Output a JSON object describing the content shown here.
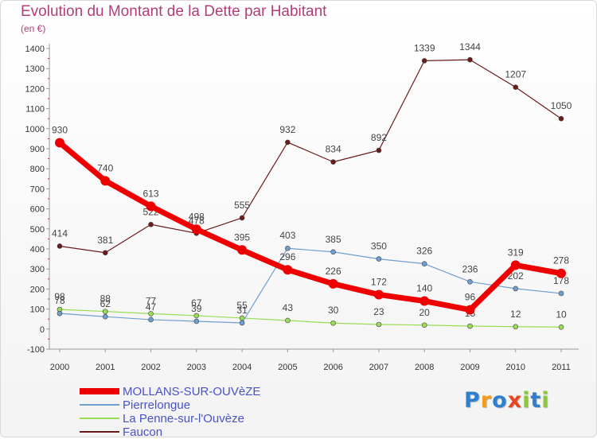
{
  "title": "Evolution du Montant de la Dette par Habitant",
  "subtitle": "(en €)",
  "logo": "Proxiti",
  "chart_data": {
    "type": "line",
    "x": [
      "2000",
      "2001",
      "2002",
      "2003",
      "2004",
      "2005",
      "2006",
      "2007",
      "2008",
      "2009",
      "2010",
      "2011"
    ],
    "ylim": [
      -100,
      1400
    ],
    "yticks": [
      -100,
      0,
      100,
      200,
      300,
      400,
      500,
      600,
      700,
      800,
      900,
      1000,
      1100,
      1200,
      1300,
      1400
    ],
    "grid": false,
    "legend_position": "bottom-left",
    "series": [
      {
        "name": "Faucon",
        "color": "#6b1a1a",
        "width": 1.2,
        "marker": 3,
        "values": [
          414,
          381,
          522,
          478,
          555,
          932,
          834,
          892,
          1339,
          1344,
          1207,
          1050
        ]
      },
      {
        "name": "La Penne-sur-l'Ouvèze",
        "color": "#99dd55",
        "width": 1.2,
        "marker": 3,
        "values": [
          98,
          88,
          77,
          67,
          55,
          43,
          30,
          23,
          20,
          15,
          12,
          10
        ]
      },
      {
        "name": "Pierrelongue",
        "color": "#6f9fd0",
        "width": 1.2,
        "marker": 3,
        "values": [
          78,
          62,
          47,
          39,
          31,
          403,
          385,
          350,
          326,
          236,
          202,
          178
        ]
      },
      {
        "name": "MOLLANS-SUR-OUVèZE",
        "color": "#ee0000",
        "width": 7,
        "marker": 6,
        "values": [
          930,
          740,
          613,
          498,
          395,
          296,
          226,
          172,
          140,
          96,
          319,
          278
        ]
      }
    ],
    "legend_order": [
      3,
      2,
      1,
      0
    ]
  }
}
